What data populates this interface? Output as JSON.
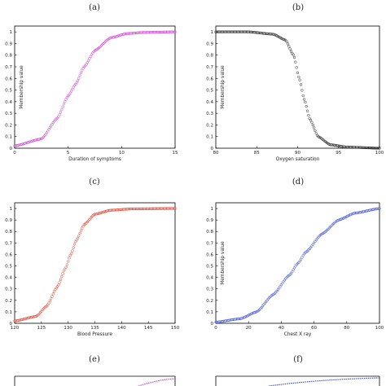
{
  "chart_data": [
    {
      "type": "scatter",
      "panel": "(a)",
      "xlabel": "Duration of symptoms",
      "ylabel": "Membership value",
      "xlim": [
        0,
        15
      ],
      "ylim": [
        0,
        1.05
      ],
      "xticks": [
        0,
        5,
        10,
        15
      ],
      "yticks": [
        0,
        0.1,
        0.2,
        0.3,
        0.4,
        0.5,
        0.6,
        0.7,
        0.8,
        0.9,
        1
      ],
      "marker": "circle",
      "color": "#cc44cc",
      "series": [
        {
          "x": [
            0,
            2.5,
            4,
            5,
            5.7,
            6.5,
            7.5,
            9,
            10.5,
            12,
            15
          ],
          "values": [
            0.02,
            0.08,
            0.26,
            0.45,
            0.55,
            0.7,
            0.84,
            0.95,
            0.985,
            0.995,
            1.0
          ]
        }
      ]
    },
    {
      "type": "scatter",
      "panel": "(b)",
      "xlabel": "Oxygen saturation",
      "ylabel": "Membership value",
      "xlim": [
        80,
        100
      ],
      "ylim": [
        0,
        1.05
      ],
      "xticks": [
        80,
        85,
        90,
        95,
        100
      ],
      "yticks": [
        0,
        0.1,
        0.2,
        0.3,
        0.4,
        0.5,
        0.6,
        0.7,
        0.8,
        0.9,
        1
      ],
      "marker": "circle",
      "color": "#222222",
      "series": [
        {
          "x": [
            80,
            84,
            87,
            88.5,
            89.5,
            90.2,
            90.8,
            91.5,
            92.5,
            94,
            96,
            100
          ],
          "values": [
            1.0,
            1.0,
            0.98,
            0.93,
            0.8,
            0.6,
            0.42,
            0.25,
            0.1,
            0.03,
            0.01,
            0.0
          ]
        }
      ]
    },
    {
      "type": "scatter",
      "panel": "(c)",
      "xlabel": "Blood Pressure",
      "ylabel": "",
      "xlim": [
        120,
        150
      ],
      "ylim": [
        0,
        1.05
      ],
      "xticks": [
        120,
        125,
        130,
        135,
        140,
        145,
        150
      ],
      "yticks": [
        0,
        0.1,
        0.2,
        0.3,
        0.4,
        0.5,
        0.6,
        0.7,
        0.8,
        0.9,
        1
      ],
      "marker": "circle",
      "color": "#dd4433",
      "series": [
        {
          "x": [
            120,
            124,
            126,
            128,
            129.5,
            130.5,
            131.5,
            133,
            135,
            138,
            142,
            150
          ],
          "values": [
            0.02,
            0.06,
            0.15,
            0.32,
            0.48,
            0.6,
            0.72,
            0.86,
            0.95,
            0.985,
            0.997,
            1.0
          ]
        }
      ]
    },
    {
      "type": "scatter",
      "panel": "(d)",
      "xlabel": "Chest X ray",
      "ylabel": "Membership value",
      "xlim": [
        0,
        100
      ],
      "ylim": [
        0,
        1.05
      ],
      "xticks": [
        0,
        20,
        40,
        60,
        80,
        100
      ],
      "yticks": [
        0,
        0.1,
        0.2,
        0.3,
        0.4,
        0.5,
        0.6,
        0.7,
        0.8,
        0.9,
        1
      ],
      "marker": "circle",
      "color": "#4455cc",
      "series": [
        {
          "x": [
            0,
            15,
            25,
            35,
            45,
            50,
            55,
            65,
            75,
            85,
            100
          ],
          "values": [
            0.01,
            0.04,
            0.1,
            0.25,
            0.42,
            0.52,
            0.62,
            0.78,
            0.9,
            0.96,
            1.0
          ]
        }
      ]
    }
  ],
  "captions": {
    "a": "(a)",
    "b": "(b)",
    "c": "(c)",
    "d": "(d)",
    "e": "(e)",
    "f": "(f)"
  }
}
